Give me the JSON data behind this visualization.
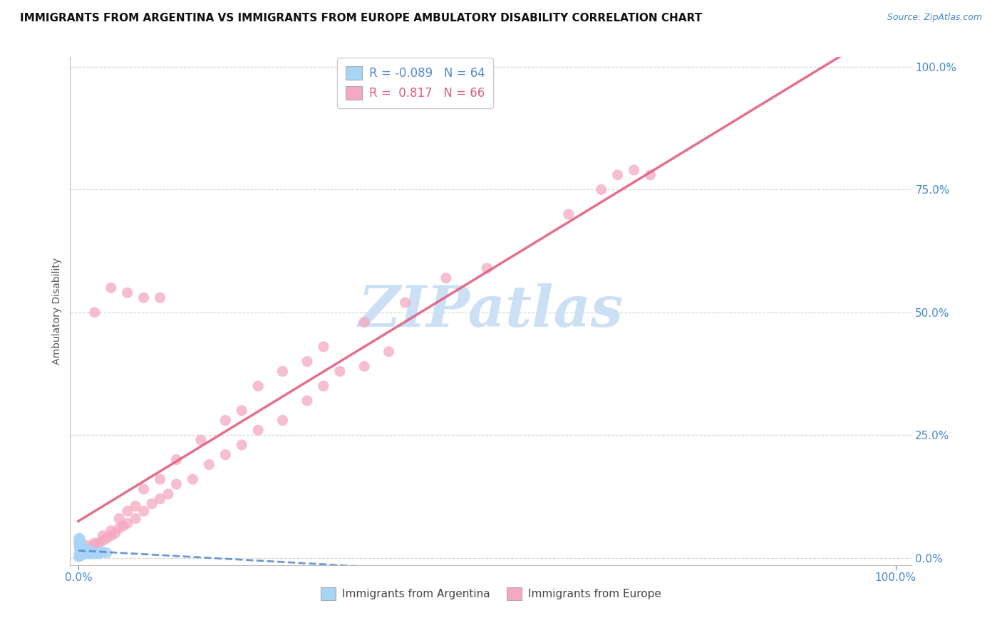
{
  "title": "IMMIGRANTS FROM ARGENTINA VS IMMIGRANTS FROM EUROPE AMBULATORY DISABILITY CORRELATION CHART",
  "source_text": "Source: ZipAtlas.com",
  "ylabel": "Ambulatory Disability",
  "legend_label1": "Immigrants from Argentina",
  "legend_label2": "Immigrants from Europe",
  "R1": -0.089,
  "N1": 64,
  "R2": 0.817,
  "N2": 66,
  "color_argentina": "#a8d4f5",
  "color_europe": "#f5a8c0",
  "color_line_argentina": "#5588cc",
  "color_line_europe": "#e06080",
  "background_color": "#ffffff",
  "grid_color": "#cccccc",
  "watermark_color": "#cce0f5",
  "title_color": "#111111",
  "source_color": "#4488cc",
  "tick_color": "#4488cc",
  "ylabel_color": "#555555",
  "europe_x": [
    0.004,
    0.006,
    0.008,
    0.01,
    0.012,
    0.014,
    0.016,
    0.018,
    0.02,
    0.025,
    0.03,
    0.035,
    0.04,
    0.045,
    0.05,
    0.055,
    0.06,
    0.07,
    0.08,
    0.09,
    0.1,
    0.11,
    0.12,
    0.14,
    0.16,
    0.18,
    0.2,
    0.22,
    0.25,
    0.28,
    0.3,
    0.32,
    0.35,
    0.38,
    0.008,
    0.012,
    0.02,
    0.03,
    0.04,
    0.05,
    0.06,
    0.07,
    0.08,
    0.1,
    0.12,
    0.15,
    0.18,
    0.2,
    0.22,
    0.25,
    0.28,
    0.3,
    0.35,
    0.4,
    0.45,
    0.5,
    0.6,
    0.64,
    0.66,
    0.68,
    0.7,
    0.02,
    0.04,
    0.06,
    0.08,
    0.1
  ],
  "europe_y": [
    0.005,
    0.008,
    0.01,
    0.012,
    0.015,
    0.018,
    0.02,
    0.022,
    0.025,
    0.03,
    0.035,
    0.04,
    0.045,
    0.05,
    0.06,
    0.065,
    0.07,
    0.08,
    0.095,
    0.11,
    0.12,
    0.13,
    0.15,
    0.16,
    0.19,
    0.21,
    0.23,
    0.26,
    0.28,
    0.32,
    0.35,
    0.38,
    0.39,
    0.42,
    0.018,
    0.025,
    0.03,
    0.045,
    0.055,
    0.08,
    0.095,
    0.105,
    0.14,
    0.16,
    0.2,
    0.24,
    0.28,
    0.3,
    0.35,
    0.38,
    0.4,
    0.43,
    0.48,
    0.52,
    0.57,
    0.59,
    0.7,
    0.75,
    0.78,
    0.79,
    0.78,
    0.5,
    0.55,
    0.54,
    0.53,
    0.53
  ],
  "argentina_x": [
    0.0005,
    0.001,
    0.001,
    0.001,
    0.002,
    0.002,
    0.002,
    0.002,
    0.003,
    0.003,
    0.003,
    0.004,
    0.004,
    0.004,
    0.005,
    0.005,
    0.005,
    0.006,
    0.006,
    0.007,
    0.007,
    0.008,
    0.008,
    0.009,
    0.009,
    0.01,
    0.01,
    0.011,
    0.012,
    0.013,
    0.014,
    0.015,
    0.016,
    0.018,
    0.02,
    0.022,
    0.025,
    0.028,
    0.03,
    0.035,
    0.001,
    0.001,
    0.001,
    0.002,
    0.002,
    0.003,
    0.003,
    0.004,
    0.004,
    0.005,
    0.005,
    0.006,
    0.006,
    0.007,
    0.008,
    0.009,
    0.01,
    0.012,
    0.015,
    0.02,
    0.001,
    0.001,
    0.002,
    0.003
  ],
  "argentina_y": [
    0.002,
    0.003,
    0.005,
    0.008,
    0.004,
    0.006,
    0.01,
    0.015,
    0.005,
    0.008,
    0.012,
    0.006,
    0.01,
    0.015,
    0.008,
    0.012,
    0.018,
    0.01,
    0.015,
    0.008,
    0.014,
    0.01,
    0.016,
    0.012,
    0.018,
    0.01,
    0.016,
    0.014,
    0.012,
    0.01,
    0.014,
    0.01,
    0.008,
    0.01,
    0.012,
    0.01,
    0.008,
    0.01,
    0.012,
    0.01,
    0.02,
    0.025,
    0.03,
    0.022,
    0.028,
    0.018,
    0.024,
    0.016,
    0.022,
    0.014,
    0.02,
    0.012,
    0.018,
    0.01,
    0.014,
    0.012,
    0.01,
    0.008,
    0.01,
    0.008,
    0.035,
    0.04,
    0.038,
    0.032
  ],
  "xlim": [
    0.0,
    1.0
  ],
  "ylim": [
    0.0,
    1.0
  ],
  "xticks": [
    0.0,
    1.0
  ],
  "yticks": [
    0.0,
    0.25,
    0.5,
    0.75,
    1.0
  ]
}
